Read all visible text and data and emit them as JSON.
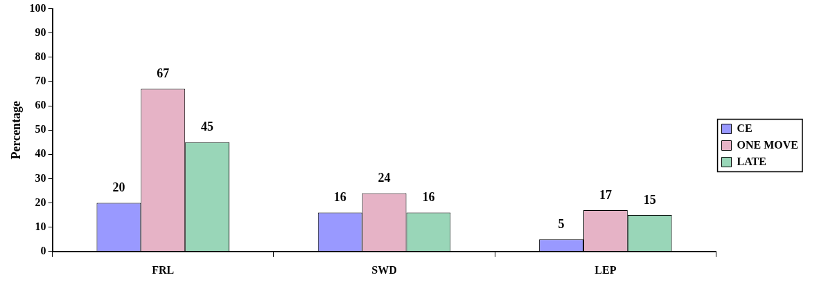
{
  "chart_data": {
    "type": "bar",
    "ylabel": "Percentage",
    "categories": [
      "FRL",
      "SWD",
      "LEP"
    ],
    "series": [
      {
        "name": "CE",
        "color": "#9999ff",
        "values": [
          20,
          16,
          5
        ]
      },
      {
        "name": "ONE MOVE",
        "color": "#e6b3c6",
        "values": [
          67,
          24,
          17
        ]
      },
      {
        "name": "LATE",
        "color": "#99d6b8",
        "values": [
          45,
          16,
          15
        ]
      }
    ],
    "ylim": [
      0,
      100
    ],
    "yticks": [
      0,
      10,
      20,
      30,
      40,
      50,
      60,
      70,
      80,
      90,
      100
    ],
    "grid": false,
    "legend": "right",
    "data_labels": true
  }
}
